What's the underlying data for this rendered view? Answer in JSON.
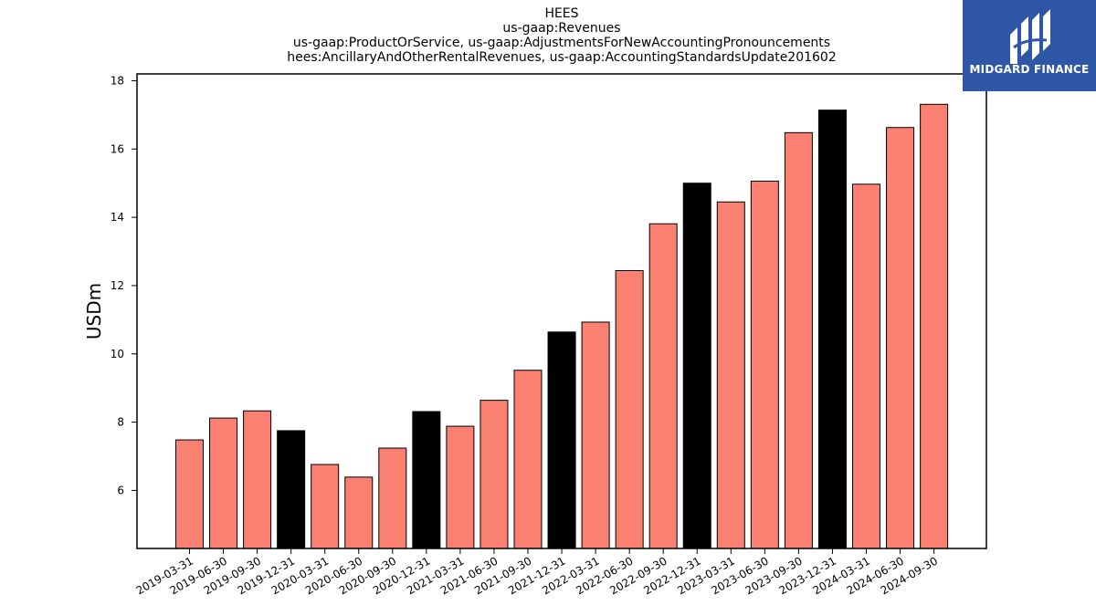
{
  "chart_data": {
    "type": "bar",
    "title_lines": [
      "HEES",
      "us-gaap:Revenues",
      "us-gaap:ProductOrService, us-gaap:AdjustmentsForNewAccountingPronouncements",
      "hees:AncillaryAndOtherRentalRevenues, us-gaap:AccountingStandardsUpdate201602"
    ],
    "ylabel": "USDm",
    "xlabel": "",
    "ylim": [
      4.3,
      18.2
    ],
    "yticks": [
      6,
      8,
      10,
      12,
      14,
      16,
      18
    ],
    "categories": [
      "2019-03-31",
      "2019-06-30",
      "2019-09-30",
      "2019-12-31",
      "2020-03-31",
      "2020-06-30",
      "2020-09-30",
      "2020-12-31",
      "2021-03-31",
      "2021-06-30",
      "2021-09-30",
      "2021-12-31",
      "2022-03-31",
      "2022-06-30",
      "2022-09-30",
      "2022-12-31",
      "2023-03-31",
      "2023-06-30",
      "2023-09-30",
      "2023-12-31",
      "2024-03-31",
      "2024-06-30",
      "2024-09-30"
    ],
    "values": [
      7.48,
      8.12,
      8.33,
      7.75,
      6.76,
      6.39,
      7.24,
      8.31,
      7.88,
      8.64,
      9.52,
      10.64,
      10.93,
      12.44,
      13.81,
      15.0,
      14.45,
      15.06,
      16.48,
      17.14,
      14.97,
      16.63,
      17.31
    ],
    "bar_colors": [
      "#fa8072",
      "#fa8072",
      "#fa8072",
      "#000000",
      "#fa8072",
      "#fa8072",
      "#fa8072",
      "#000000",
      "#fa8072",
      "#fa8072",
      "#fa8072",
      "#000000",
      "#fa8072",
      "#fa8072",
      "#fa8072",
      "#000000",
      "#fa8072",
      "#fa8072",
      "#fa8072",
      "#000000",
      "#fa8072",
      "#fa8072",
      "#fa8072"
    ],
    "grid": false,
    "legend": "none"
  },
  "logo": {
    "text": "MIDGARD FINANCE",
    "background": "#2f57a8"
  }
}
